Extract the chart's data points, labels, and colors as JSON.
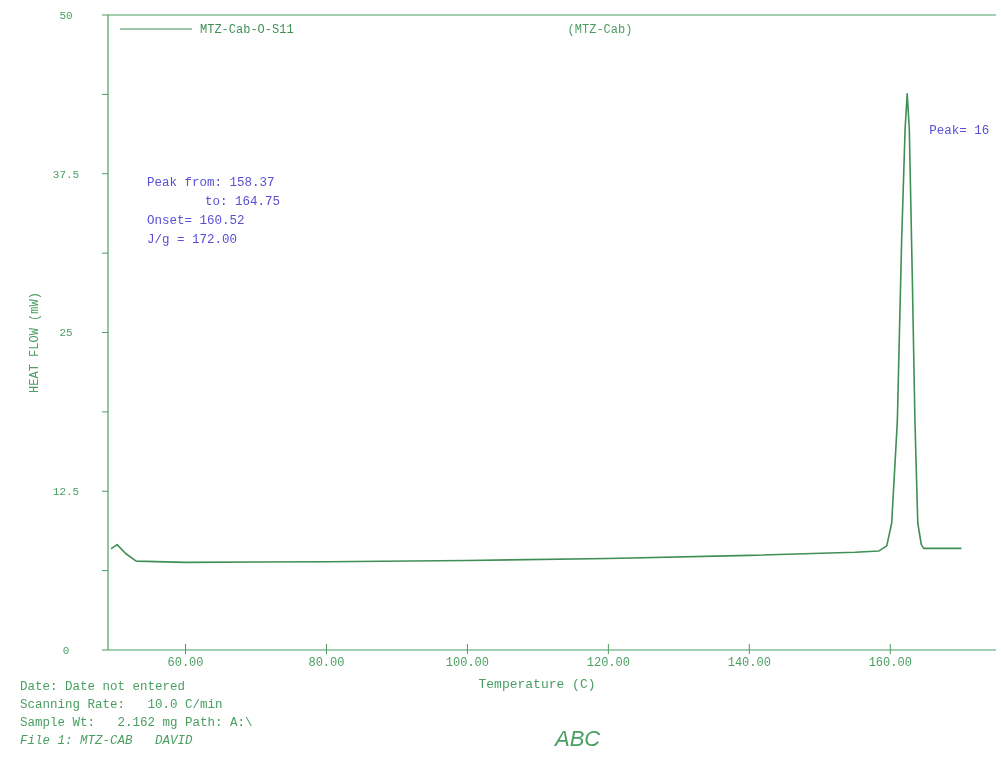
{
  "chart_data": {
    "type": "line",
    "title": "(MTZ-Cab)",
    "xlabel": "Temperature (C)",
    "ylabel": "HEAT FLOW (mW)",
    "xlim": [
      49,
      175
    ],
    "ylim": [
      0,
      50
    ],
    "xticks": [
      {
        "value": 60,
        "label": "60.00"
      },
      {
        "value": 80,
        "label": "80.00"
      },
      {
        "value": 100,
        "label": "100.00"
      },
      {
        "value": 120,
        "label": "120.00"
      },
      {
        "value": 140,
        "label": "140.00"
      },
      {
        "value": 160,
        "label": "160.00"
      }
    ],
    "yticks": [
      0,
      {
        "value": 6.25,
        "label": null
      },
      12.5,
      {
        "value": 18.75,
        "label": null
      },
      25,
      {
        "value": 31.25,
        "label": null
      },
      37.5,
      {
        "value": 43.75,
        "label": null
      },
      50
    ],
    "legend": "top left",
    "grid": false,
    "marker": "none",
    "line_style": "solid",
    "series": [
      {
        "name": "MTZ-Cab-O-S11",
        "color": "#3f8f55",
        "x": [
          49.5,
          50.3,
          51.5,
          53,
          60,
          80,
          100,
          120,
          140,
          155,
          158.4,
          159.5,
          160.2,
          161,
          161.6,
          162.1,
          162.4,
          162.7,
          163.1,
          163.5,
          163.9,
          164.4,
          164.75,
          170
        ],
        "values": [
          8.0,
          8.3,
          7.6,
          7.0,
          6.9,
          6.95,
          7.05,
          7.2,
          7.45,
          7.7,
          7.8,
          8.2,
          10,
          18,
          32,
          41,
          43.8,
          41,
          30,
          18,
          10,
          8.3,
          8.0,
          8.0
        ]
      }
    ],
    "annotations": [
      "Peak from: 158.37",
      "to: 164.75",
      "Onset= 160.52",
      "J/g = 172.00",
      "Date: Date not entered",
      "Scanning Rate:   10.0 C/min",
      "Sample Wt:   2.162 mg Path: A:\\",
      "File 1: MTZ-CAB   DAVID",
      "ABC",
      {
        "text": "Peak= 16",
        "x": 162.4,
        "y": 41
      }
    ]
  }
}
